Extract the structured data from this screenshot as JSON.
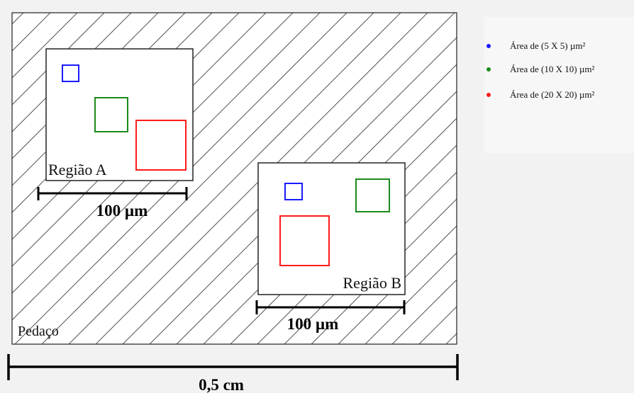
{
  "specimen": {
    "label": "Pedaço",
    "scale_label": "0,5 cm"
  },
  "regions": [
    {
      "label": "Região A",
      "scale_label": "100 µm"
    },
    {
      "label": "Região B",
      "scale_label": "100 µm"
    }
  ],
  "legend": [
    {
      "label": "Área de (5 X 5) µm²",
      "color": "#1a1aff"
    },
    {
      "label": "Área de (10 X 10) µm²",
      "color": "#1a8a1a"
    },
    {
      "label": "Área de (20 X 20) µm²",
      "color": "#ff1a1a"
    }
  ],
  "colors": {
    "outline": "#222222",
    "hatch": "#555555",
    "blue": "#1a1aff",
    "green": "#1a8a1a",
    "red": "#ff1a1a"
  }
}
